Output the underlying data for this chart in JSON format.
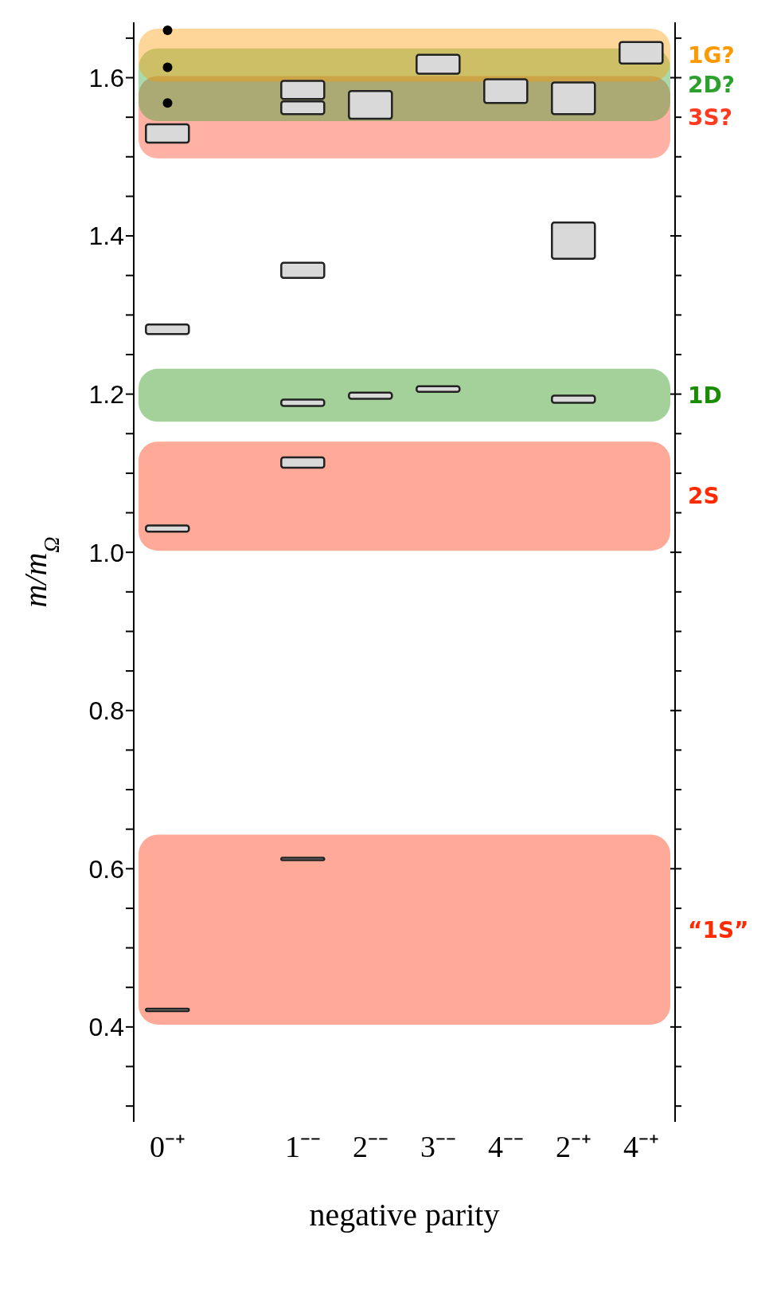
{
  "chart_data": {
    "type": "bar",
    "xlabel": "negative parity",
    "ylabel": "m/m$_{Ω}$",
    "categories": [
      "0⁻⁺",
      null,
      "1⁻⁻",
      "2⁻⁻",
      "3⁻⁻",
      "4⁻⁻",
      "2⁻⁺",
      "4⁻⁺"
    ],
    "series": [
      {
        "color": "#d9d9d9",
        "base": [
          0.42,
          null,
          0.611,
          1.194,
          1.203,
          1.568,
          1.189,
          1.618
        ],
        "values": [
          0.003,
          null,
          0.003,
          0.008,
          0.007,
          0.03,
          0.009,
          0.027
        ]
      },
      {
        "color": "#d9d9d9",
        "base": [
          1.026,
          null,
          1.107,
          1.548,
          1.605,
          null,
          1.371,
          null
        ],
        "values": [
          0.008,
          null,
          0.013,
          0.035,
          0.024,
          null,
          0.046,
          null
        ]
      },
      {
        "color": "#d9d9d9",
        "base": [
          1.276,
          null,
          1.185,
          null,
          null,
          null,
          1.554,
          null
        ],
        "values": [
          0.012,
          null,
          0.008,
          null,
          null,
          null,
          0.04,
          null
        ]
      },
      {
        "color": "#d9d9d9",
        "base": [
          1.518,
          null,
          1.347,
          null,
          null,
          null,
          null,
          null
        ],
        "values": [
          0.023,
          null,
          0.019,
          null,
          null,
          null,
          null,
          null
        ]
      },
      {
        "color": "#d9d9d9",
        "base": [
          null,
          null,
          1.554,
          null,
          null,
          null,
          null,
          null
        ],
        "values": [
          null,
          null,
          0.016,
          null,
          null,
          null,
          null,
          null
        ]
      },
      {
        "color": "#d9d9d9",
        "base": [
          null,
          null,
          1.573,
          null,
          null,
          null,
          null,
          null
        ],
        "values": [
          null,
          null,
          0.023,
          null,
          null,
          null,
          null,
          null
        ]
      },
      {
        "type": "scatter",
        "color": "#000000",
        "x": [
          "0⁻⁺",
          "0⁻⁺",
          "0⁻⁺"
        ],
        "values": [
          1.568,
          1.613,
          1.66
        ]
      }
    ],
    "ylim": [
      0.28,
      1.67
    ],
    "yticks": [
      {
        "value": 0.3,
        "label": null
      },
      {
        "value": 0.35,
        "label": null
      },
      {
        "value": 0.4,
        "label": "0.4"
      },
      {
        "value": 0.45,
        "label": null
      },
      {
        "value": 0.5,
        "label": null
      },
      {
        "value": 0.55,
        "label": null
      },
      {
        "value": 0.6,
        "label": "0.6"
      },
      {
        "value": 0.65,
        "label": null
      },
      {
        "value": 0.7,
        "label": null
      },
      {
        "value": 0.75,
        "label": null
      },
      {
        "value": 0.8,
        "label": "0.8"
      },
      {
        "value": 0.85,
        "label": null
      },
      {
        "value": 0.9,
        "label": null
      },
      {
        "value": 0.95,
        "label": null
      },
      {
        "value": 1,
        "label": "1.0"
      },
      {
        "value": 1.05,
        "label": null
      },
      {
        "value": 1.1,
        "label": null
      },
      {
        "value": 1.15,
        "label": null
      },
      {
        "value": 1.2,
        "label": "1.2"
      },
      {
        "value": 1.25,
        "label": null
      },
      {
        "value": 1.3,
        "label": null
      },
      {
        "value": 1.35,
        "label": null
      },
      {
        "value": 1.4,
        "label": "1.4"
      },
      {
        "value": 1.45,
        "label": null
      },
      {
        "value": 1.5,
        "label": null
      },
      {
        "value": 1.55,
        "label": null
      },
      {
        "value": 1.6,
        "label": "1.6"
      },
      {
        "value": 1.65,
        "label": null
      }
    ],
    "bands": [
      {
        "axis": "y",
        "from": 0.403,
        "to": 0.643,
        "label": "“1S”",
        "color": "#ff2a00"
      },
      {
        "axis": "y",
        "from": 1.002,
        "to": 1.14,
        "label": "2S",
        "color": "#ff2a00"
      },
      {
        "axis": "y",
        "from": 1.165,
        "to": 1.232,
        "label": "1D",
        "color": "#1a8c00"
      },
      {
        "axis": "y",
        "from": 1.498,
        "to": 1.602,
        "label": "3S?",
        "color": "#ff3b1f"
      },
      {
        "axis": "y",
        "from": 1.545,
        "to": 1.637,
        "label": "2D?",
        "color": "#2ca02c"
      },
      {
        "axis": "y",
        "from": 1.595,
        "to": 1.662,
        "label": "1G?",
        "color": "#ff9900"
      }
    ]
  }
}
